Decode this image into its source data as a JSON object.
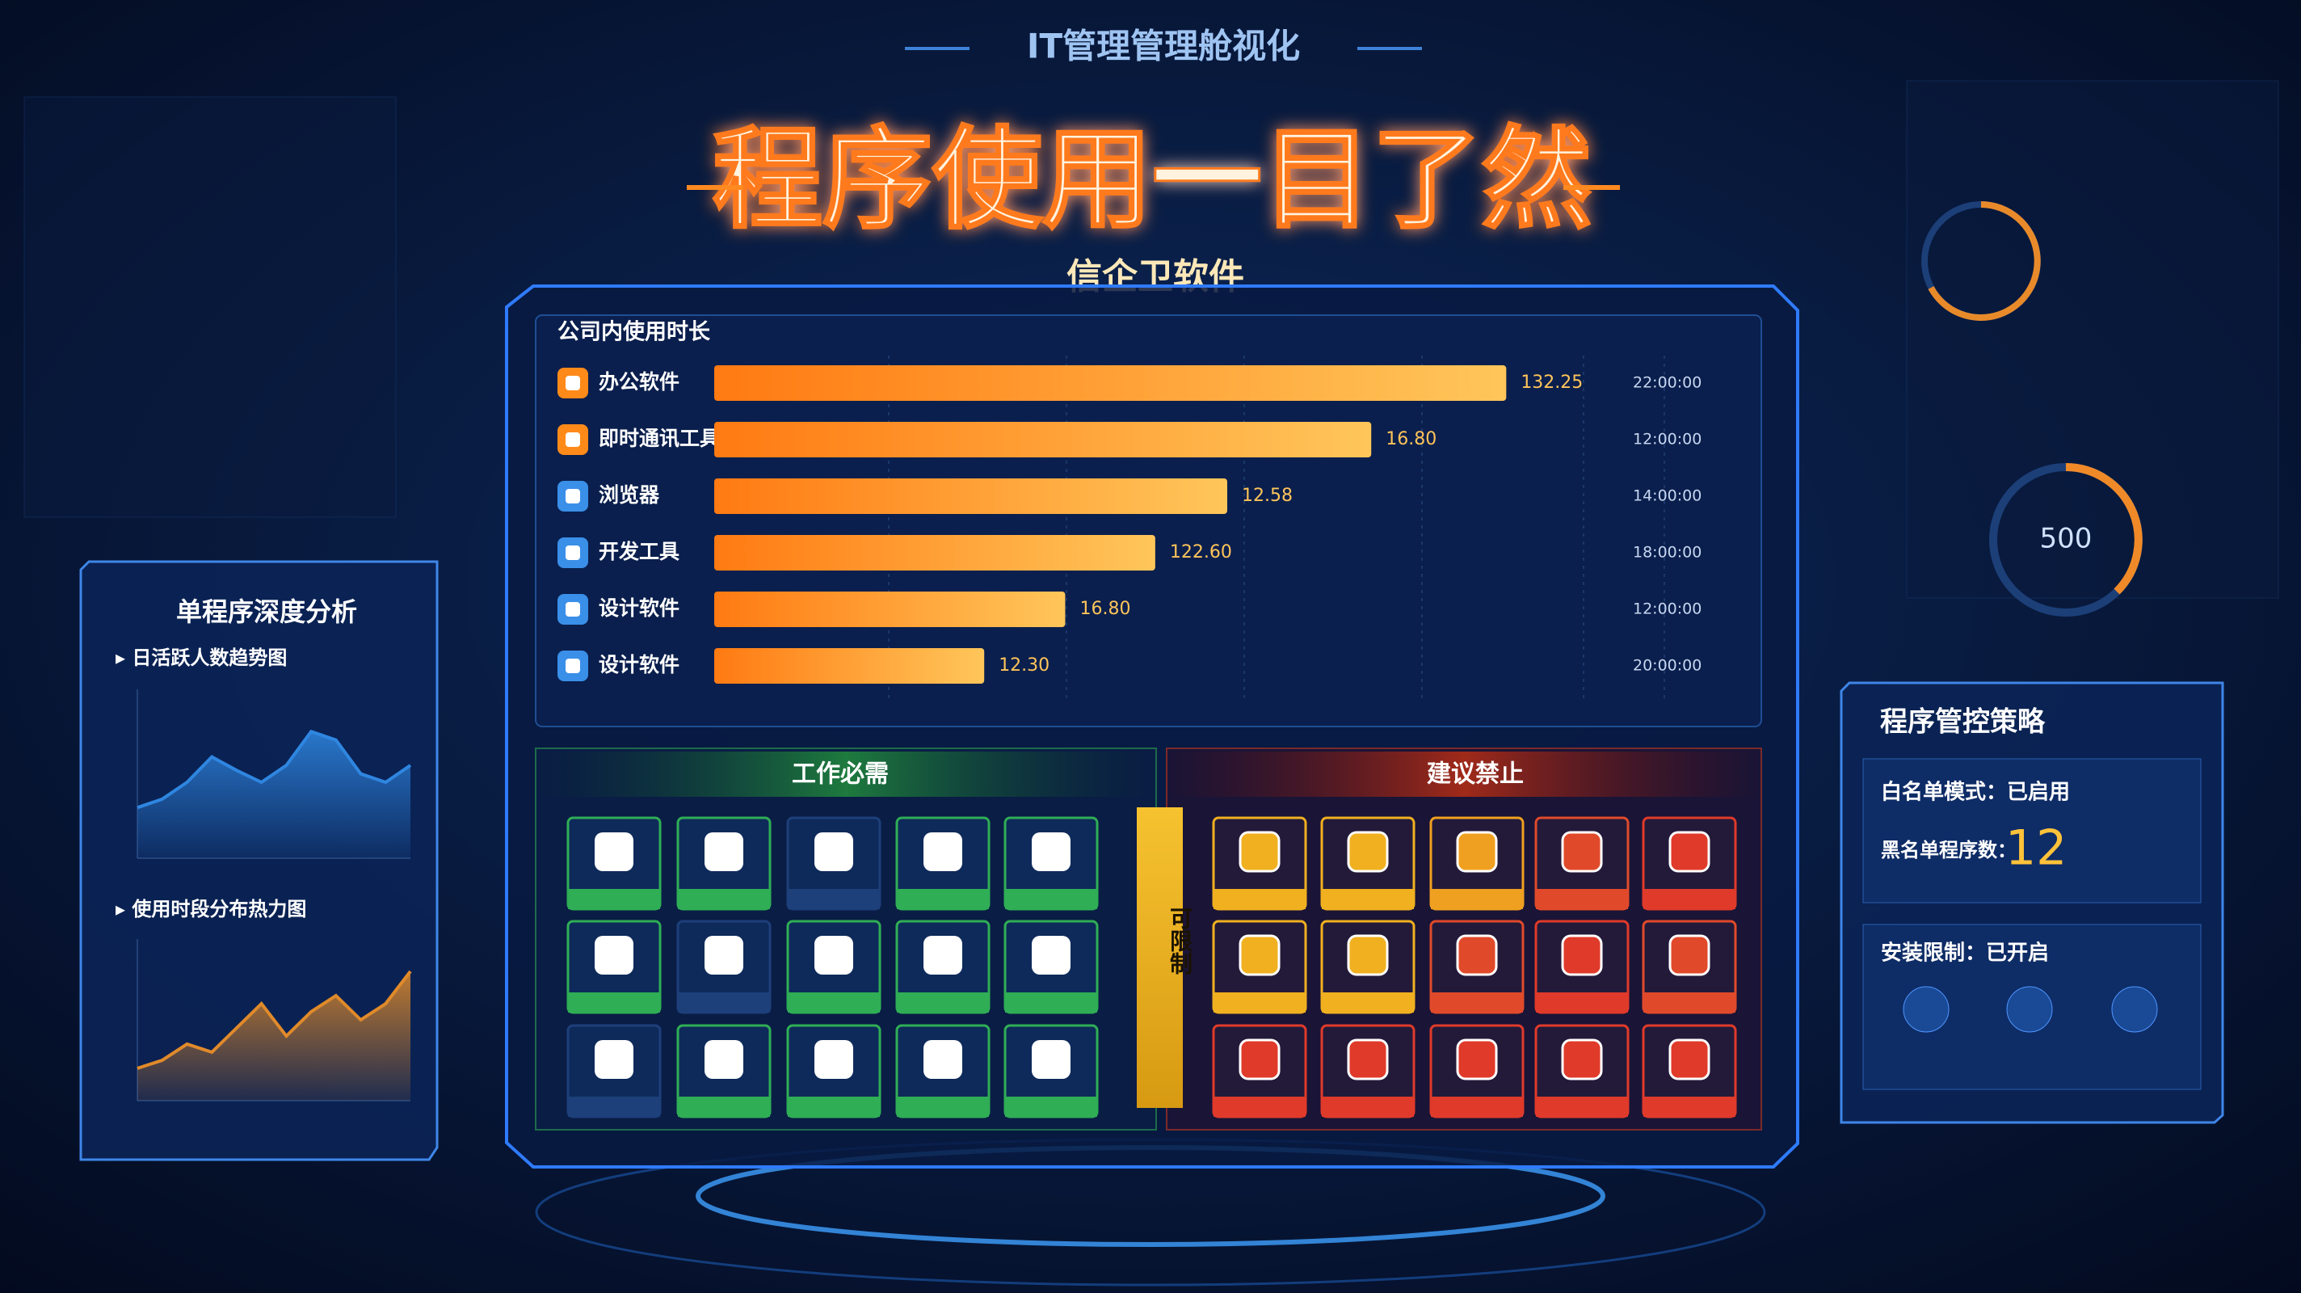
{
  "header": {
    "top_title": "IT管理管理舱视化",
    "title": "程序使用一目了然",
    "subtitle": "信企卫软件"
  },
  "usage_chart": {
    "type": "bar",
    "title": "公司内使用时长",
    "categories": [
      "办公软件",
      "即时通讯工具",
      "浏览器",
      "开发工具",
      "设计软件",
      "设计软件"
    ],
    "values": [
      88,
      73,
      57,
      49,
      39,
      30
    ],
    "bar_texts": [
      "132.25",
      "16.80",
      "12.58",
      "122.60",
      "16.80",
      "12.30"
    ],
    "time_labels": [
      "22:00:00",
      "12:00:00",
      "14:00:00",
      "18:00:00",
      "12:00:00",
      "20:00:00"
    ],
    "xlim": [
      0,
      100
    ]
  },
  "work_panel": {
    "title": "工作必需"
  },
  "limit_strip": {
    "title": "可限制"
  },
  "block_panel": {
    "title": "建议禁止"
  },
  "left_panel": {
    "title": "单程序深度分析",
    "trend": {
      "type": "area",
      "title": "日活跃人数趋势图",
      "values": [
        30,
        35,
        45,
        60,
        52,
        45,
        55,
        75,
        70,
        50,
        45,
        55
      ],
      "ylim": [
        0,
        100
      ],
      "color": "#2f86e0"
    },
    "heat": {
      "type": "area",
      "title": "使用时段分布热力图",
      "values": [
        20,
        25,
        35,
        30,
        45,
        60,
        40,
        55,
        65,
        50,
        60,
        80
      ],
      "ylim": [
        0,
        100
      ],
      "color": "#e08a2a"
    }
  },
  "right_panel": {
    "title": "程序管控策略",
    "whitelist": "白名单模式：已启用",
    "blacklist_label": "黑名单程序数：",
    "blacklist_count": "12",
    "install": "安装限制：已开启"
  },
  "gauge": {
    "value": "500"
  }
}
